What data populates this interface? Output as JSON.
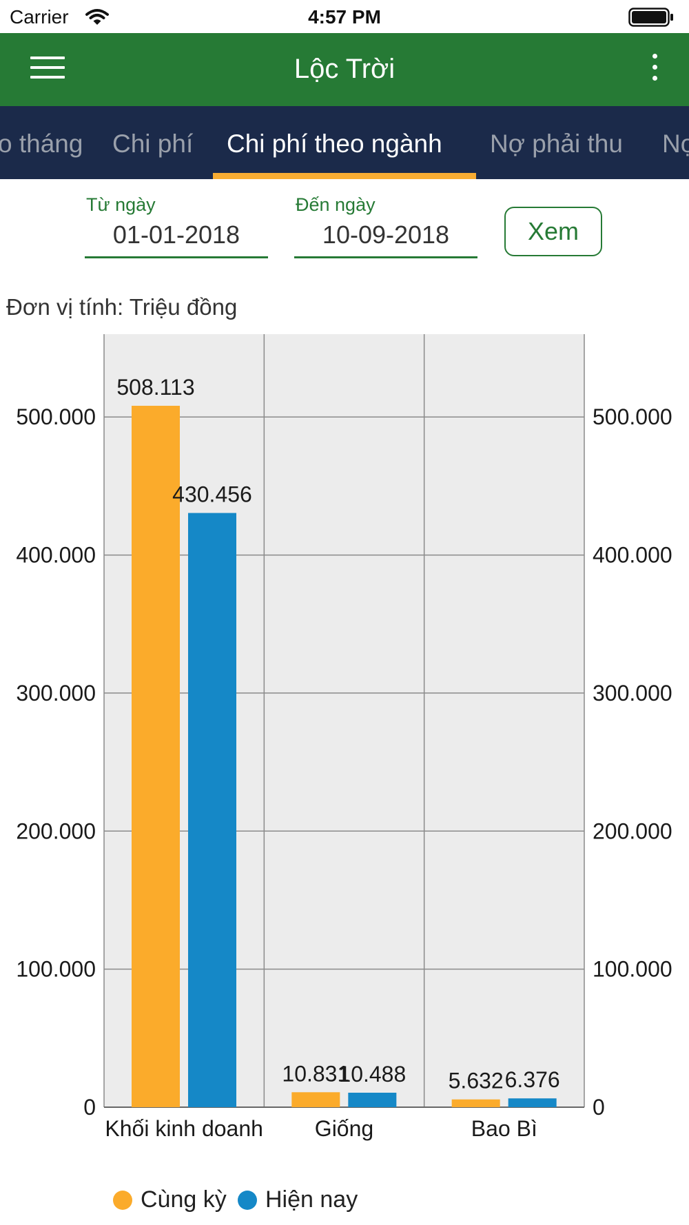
{
  "status_bar": {
    "carrier": "Carrier",
    "time": "4:57 PM"
  },
  "app_bar": {
    "title": "Lộc Trời"
  },
  "tabs": [
    {
      "label": "o tháng"
    },
    {
      "label": "Chi phí"
    },
    {
      "label": "Chi phí theo ngành",
      "active": true
    },
    {
      "label": "Nợ phải thu"
    },
    {
      "label": "Nợ"
    }
  ],
  "filter": {
    "from_label": "Từ ngày",
    "from_value": "01-01-2018",
    "to_label": "Đến ngày",
    "to_value": "10-09-2018",
    "view_button": "Xem"
  },
  "unit_note": "Đơn vị tính: Triệu đồng",
  "chart_data": {
    "type": "bar",
    "categories": [
      "Khối kinh doanh",
      "Giống",
      "Bao Bì"
    ],
    "series": [
      {
        "name": "Cùng kỳ",
        "color": "#fbab2b",
        "values": [
          508.113,
          10.831,
          5.632
        ],
        "labels": [
          "508.113",
          "10.831",
          "5.632"
        ]
      },
      {
        "name": "Hiện nay",
        "color": "#1588c7",
        "values": [
          430.456,
          10.488,
          6.376
        ],
        "labels": [
          "430.456",
          "10.488",
          "6.376"
        ]
      }
    ],
    "y_ticks": [
      {
        "value": 0,
        "label": "0"
      },
      {
        "value": 100,
        "label": "100.000"
      },
      {
        "value": 200,
        "label": "200.000"
      },
      {
        "value": 300,
        "label": "300.000"
      },
      {
        "value": 400,
        "label": "400.000"
      },
      {
        "value": 500,
        "label": "500.000"
      }
    ],
    "ylim": [
      0,
      560
    ],
    "dual_axis_labels": true,
    "grid": true,
    "legend_position": "bottom-left",
    "plot_background": "#ececec"
  }
}
